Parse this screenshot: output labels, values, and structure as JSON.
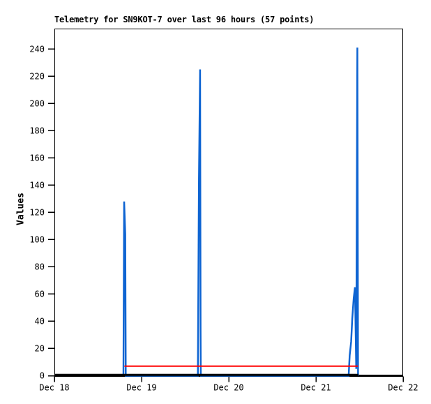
{
  "page": {
    "background_color": "#ffffff"
  },
  "chart_data": {
    "type": "line",
    "title": "Telemetry for SN9KOT-7 over last 96 hours (57 points)",
    "xlabel": "",
    "ylabel": "Values",
    "x_unit": "hours since Dec 18 00:00",
    "xlim": [
      0,
      96
    ],
    "ylim": [
      0,
      255
    ],
    "grid": false,
    "legend": "none",
    "x_ticks": [
      {
        "hour": 0,
        "label": "Dec 18"
      },
      {
        "hour": 24,
        "label": "Dec 19"
      },
      {
        "hour": 48,
        "label": "Dec 20"
      },
      {
        "hour": 72,
        "label": "Dec 21"
      },
      {
        "hour": 96,
        "label": "Dec 22"
      }
    ],
    "y_ticks": [
      0,
      20,
      40,
      60,
      80,
      100,
      120,
      140,
      160,
      180,
      200,
      220,
      240
    ],
    "series": [
      {
        "name": "telemetry-values",
        "color": "#0e64d2",
        "stroke_width": 2.5,
        "points": [
          [
            19.0,
            0
          ],
          [
            19.2,
            128
          ],
          [
            19.5,
            104
          ],
          [
            19.65,
            0
          ],
          [
            39.5,
            0
          ],
          [
            39.8,
            145
          ],
          [
            40.1,
            225
          ],
          [
            40.25,
            33
          ],
          [
            40.3,
            0
          ],
          [
            81.0,
            0
          ],
          [
            81.3,
            15
          ],
          [
            81.7,
            25
          ],
          [
            82.0,
            42
          ],
          [
            82.4,
            57
          ],
          [
            82.75,
            65
          ],
          [
            83.1,
            5
          ],
          [
            83.4,
            241
          ],
          [
            83.6,
            0
          ]
        ]
      },
      {
        "name": "baseline",
        "color": "#000000",
        "stroke_width": 3,
        "points": [
          [
            0,
            0.6
          ],
          [
            83.7,
            0.6
          ]
        ]
      },
      {
        "name": "threshold-line",
        "color": "#ff0000",
        "stroke_width": 2,
        "points": [
          [
            19.3,
            7
          ],
          [
            83.6,
            7
          ]
        ]
      }
    ],
    "axis_color": "#000000",
    "plot_background": "#ffffff"
  }
}
